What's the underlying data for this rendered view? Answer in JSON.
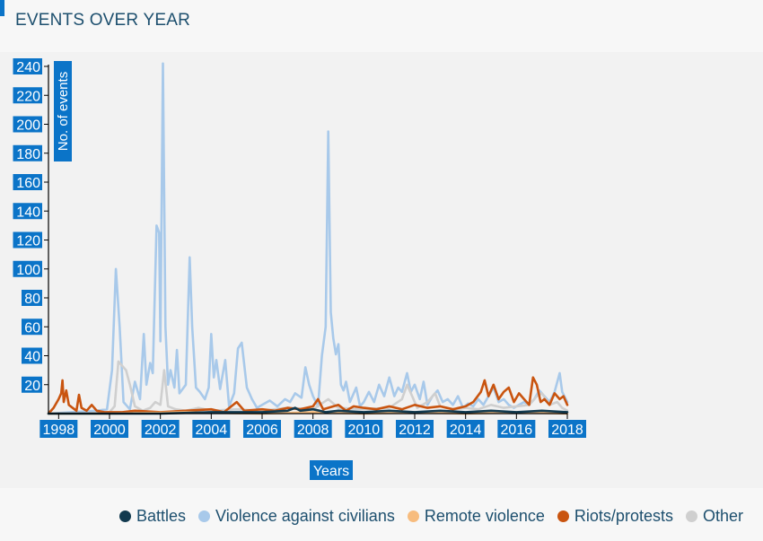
{
  "header": {
    "title": "EVENTS OVER YEAR"
  },
  "chart_data": {
    "type": "line",
    "xlabel": "Years",
    "ylabel": "No. of events",
    "xlim": [
      1997.6,
      2018.0
    ],
    "ylim": [
      0,
      240
    ],
    "yticks": [
      20,
      40,
      60,
      80,
      100,
      120,
      140,
      160,
      180,
      200,
      220,
      240
    ],
    "xticks": [
      "1998",
      "2000",
      "2002",
      "2004",
      "2006",
      "2008",
      "2010",
      "2012",
      "2014",
      "2016",
      "2018"
    ],
    "grid": false,
    "legend_position": "bottom",
    "series": [
      {
        "name": "Violence against civilians",
        "color": "#a8c9ea",
        "points": [
          [
            1997.6,
            0
          ],
          [
            1998.5,
            1
          ],
          [
            1999.5,
            2
          ],
          [
            1999.9,
            3
          ],
          [
            2000.1,
            30
          ],
          [
            2000.25,
            100
          ],
          [
            2000.4,
            60
          ],
          [
            2000.55,
            8
          ],
          [
            2000.8,
            3
          ],
          [
            2001.0,
            22
          ],
          [
            2001.2,
            10
          ],
          [
            2001.35,
            55
          ],
          [
            2001.45,
            20
          ],
          [
            2001.6,
            35
          ],
          [
            2001.7,
            28
          ],
          [
            2001.85,
            130
          ],
          [
            2001.95,
            125
          ],
          [
            2002.0,
            50
          ],
          [
            2002.1,
            242
          ],
          [
            2002.2,
            60
          ],
          [
            2002.3,
            20
          ],
          [
            2002.4,
            30
          ],
          [
            2002.55,
            18
          ],
          [
            2002.65,
            44
          ],
          [
            2002.75,
            14
          ],
          [
            2003.0,
            20
          ],
          [
            2003.15,
            108
          ],
          [
            2003.25,
            60
          ],
          [
            2003.4,
            18
          ],
          [
            2003.55,
            15
          ],
          [
            2003.75,
            10
          ],
          [
            2003.9,
            18
          ],
          [
            2004.0,
            55
          ],
          [
            2004.1,
            25
          ],
          [
            2004.2,
            37
          ],
          [
            2004.35,
            17
          ],
          [
            2004.55,
            37
          ],
          [
            2004.7,
            5
          ],
          [
            2004.9,
            14
          ],
          [
            2005.05,
            45
          ],
          [
            2005.2,
            49
          ],
          [
            2005.4,
            18
          ],
          [
            2005.6,
            10
          ],
          [
            2005.8,
            4
          ],
          [
            2006.0,
            6
          ],
          [
            2006.3,
            9
          ],
          [
            2006.6,
            5
          ],
          [
            2006.9,
            10
          ],
          [
            2007.1,
            8
          ],
          [
            2007.3,
            14
          ],
          [
            2007.55,
            11
          ],
          [
            2007.7,
            32
          ],
          [
            2007.85,
            20
          ],
          [
            2008.0,
            12
          ],
          [
            2008.2,
            5
          ],
          [
            2008.35,
            40
          ],
          [
            2008.5,
            60
          ],
          [
            2008.6,
            195
          ],
          [
            2008.7,
            70
          ],
          [
            2008.8,
            52
          ],
          [
            2008.9,
            41
          ],
          [
            2009.0,
            48
          ],
          [
            2009.1,
            20
          ],
          [
            2009.2,
            16
          ],
          [
            2009.3,
            22
          ],
          [
            2009.45,
            8
          ],
          [
            2009.7,
            18
          ],
          [
            2009.85,
            5
          ],
          [
            2010.0,
            8
          ],
          [
            2010.2,
            15
          ],
          [
            2010.4,
            8
          ],
          [
            2010.6,
            20
          ],
          [
            2010.8,
            12
          ],
          [
            2011.0,
            25
          ],
          [
            2011.2,
            12
          ],
          [
            2011.35,
            18
          ],
          [
            2011.5,
            15
          ],
          [
            2011.7,
            28
          ],
          [
            2011.85,
            15
          ],
          [
            2012.0,
            20
          ],
          [
            2012.2,
            10
          ],
          [
            2012.35,
            22
          ],
          [
            2012.5,
            6
          ],
          [
            2012.7,
            12
          ],
          [
            2012.9,
            16
          ],
          [
            2013.1,
            8
          ],
          [
            2013.3,
            10
          ],
          [
            2013.5,
            6
          ],
          [
            2013.7,
            12
          ],
          [
            2013.9,
            4
          ],
          [
            2014.1,
            7
          ],
          [
            2014.3,
            5
          ],
          [
            2014.5,
            10
          ],
          [
            2014.7,
            6
          ],
          [
            2014.9,
            12
          ],
          [
            2015.1,
            18
          ],
          [
            2015.3,
            8
          ],
          [
            2015.5,
            10
          ],
          [
            2015.7,
            6
          ],
          [
            2015.9,
            4
          ],
          [
            2016.1,
            6
          ],
          [
            2016.3,
            8
          ],
          [
            2016.5,
            6
          ],
          [
            2016.7,
            10
          ],
          [
            2016.9,
            16
          ],
          [
            2017.1,
            12
          ],
          [
            2017.3,
            8
          ],
          [
            2017.5,
            15
          ],
          [
            2017.7,
            28
          ],
          [
            2017.8,
            15
          ],
          [
            2018.0,
            8
          ]
        ]
      },
      {
        "name": "Other",
        "color": "#cfcfcf",
        "points": [
          [
            1997.6,
            0
          ],
          [
            1999.0,
            0
          ],
          [
            2000.0,
            1
          ],
          [
            2000.2,
            5
          ],
          [
            2000.35,
            36
          ],
          [
            2000.5,
            33
          ],
          [
            2000.65,
            30
          ],
          [
            2000.8,
            20
          ],
          [
            2001.0,
            5
          ],
          [
            2001.3,
            2
          ],
          [
            2001.6,
            4
          ],
          [
            2001.8,
            8
          ],
          [
            2002.0,
            6
          ],
          [
            2002.15,
            30
          ],
          [
            2002.3,
            5
          ],
          [
            2002.6,
            3
          ],
          [
            2003.0,
            2
          ],
          [
            2003.5,
            4
          ],
          [
            2004.0,
            2
          ],
          [
            2005.0,
            3
          ],
          [
            2006.0,
            2
          ],
          [
            2007.0,
            4
          ],
          [
            2008.0,
            3
          ],
          [
            2008.6,
            10
          ],
          [
            2009.0,
            4
          ],
          [
            2010.0,
            3
          ],
          [
            2011.0,
            4
          ],
          [
            2011.5,
            10
          ],
          [
            2011.7,
            20
          ],
          [
            2011.9,
            12
          ],
          [
            2012.1,
            4
          ],
          [
            2012.5,
            8
          ],
          [
            2012.8,
            14
          ],
          [
            2013.0,
            5
          ],
          [
            2013.5,
            3
          ],
          [
            2014.0,
            4
          ],
          [
            2014.5,
            3
          ],
          [
            2015.0,
            6
          ],
          [
            2015.5,
            4
          ],
          [
            2016.0,
            5
          ],
          [
            2016.5,
            6
          ],
          [
            2016.8,
            12
          ],
          [
            2017.0,
            14
          ],
          [
            2017.3,
            6
          ],
          [
            2017.6,
            8
          ],
          [
            2017.8,
            4
          ],
          [
            2018.0,
            2
          ]
        ]
      },
      {
        "name": "Riots/protests",
        "color": "#c9540f",
        "points": [
          [
            1997.6,
            0
          ],
          [
            1997.8,
            4
          ],
          [
            1998.0,
            10
          ],
          [
            1998.1,
            14
          ],
          [
            1998.15,
            23
          ],
          [
            1998.2,
            8
          ],
          [
            1998.3,
            16
          ],
          [
            1998.4,
            6
          ],
          [
            1998.55,
            4
          ],
          [
            1998.7,
            2
          ],
          [
            1998.8,
            13
          ],
          [
            1998.9,
            4
          ],
          [
            1999.1,
            2
          ],
          [
            1999.3,
            6
          ],
          [
            1999.5,
            2
          ],
          [
            1999.8,
            1
          ],
          [
            2000.5,
            1
          ],
          [
            2001.0,
            2
          ],
          [
            2002.0,
            1
          ],
          [
            2003.0,
            2
          ],
          [
            2004.0,
            3
          ],
          [
            2004.5,
            1
          ],
          [
            2005.0,
            8
          ],
          [
            2005.3,
            2
          ],
          [
            2006.0,
            3
          ],
          [
            2006.5,
            2
          ],
          [
            2007.0,
            4
          ],
          [
            2007.5,
            3
          ],
          [
            2008.0,
            5
          ],
          [
            2008.2,
            10
          ],
          [
            2008.4,
            3
          ],
          [
            2009.0,
            6
          ],
          [
            2009.3,
            2
          ],
          [
            2009.6,
            5
          ],
          [
            2010.0,
            4
          ],
          [
            2010.5,
            3
          ],
          [
            2011.0,
            5
          ],
          [
            2011.5,
            3
          ],
          [
            2012.0,
            6
          ],
          [
            2012.5,
            4
          ],
          [
            2013.0,
            5
          ],
          [
            2013.5,
            3
          ],
          [
            2014.0,
            5
          ],
          [
            2014.3,
            8
          ],
          [
            2014.6,
            15
          ],
          [
            2014.75,
            23
          ],
          [
            2014.9,
            12
          ],
          [
            2015.1,
            20
          ],
          [
            2015.3,
            10
          ],
          [
            2015.5,
            15
          ],
          [
            2015.7,
            18
          ],
          [
            2015.9,
            8
          ],
          [
            2016.1,
            14
          ],
          [
            2016.3,
            10
          ],
          [
            2016.5,
            6
          ],
          [
            2016.65,
            25
          ],
          [
            2016.8,
            20
          ],
          [
            2016.95,
            8
          ],
          [
            2017.1,
            10
          ],
          [
            2017.3,
            6
          ],
          [
            2017.5,
            14
          ],
          [
            2017.7,
            10
          ],
          [
            2017.85,
            12
          ],
          [
            2018.0,
            6
          ]
        ]
      },
      {
        "name": "Remote violence",
        "color": "#f7bc7e",
        "points": [
          [
            1997.6,
            0
          ],
          [
            2000.0,
            0
          ],
          [
            2003.0,
            1
          ],
          [
            2006.0,
            0
          ],
          [
            2008.0,
            1
          ],
          [
            2010.0,
            0
          ],
          [
            2012.0,
            1
          ],
          [
            2014.0,
            0
          ],
          [
            2016.0,
            1
          ],
          [
            2018.0,
            0
          ]
        ]
      },
      {
        "name": "Battles",
        "color": "#123a4f",
        "points": [
          [
            1997.6,
            0
          ],
          [
            2002.0,
            0
          ],
          [
            2004.0,
            1
          ],
          [
            2006.0,
            1
          ],
          [
            2007.0,
            2
          ],
          [
            2007.3,
            4
          ],
          [
            2007.5,
            2
          ],
          [
            2008.0,
            3
          ],
          [
            2008.5,
            1
          ],
          [
            2009.0,
            2
          ],
          [
            2010.0,
            1
          ],
          [
            2011.0,
            2
          ],
          [
            2012.0,
            1
          ],
          [
            2013.0,
            2
          ],
          [
            2014.0,
            1
          ],
          [
            2015.0,
            2
          ],
          [
            2016.0,
            1
          ],
          [
            2017.0,
            2
          ],
          [
            2018.0,
            1
          ]
        ]
      }
    ]
  },
  "legend": {
    "items": [
      {
        "label": "Battles",
        "color": "#123a4f"
      },
      {
        "label": "Violence against civilians",
        "color": "#a8c9ea"
      },
      {
        "label": "Remote violence",
        "color": "#f7bc7e"
      },
      {
        "label": "Riots/protests",
        "color": "#c9540f"
      },
      {
        "label": "Other",
        "color": "#cfcfcf"
      }
    ]
  }
}
